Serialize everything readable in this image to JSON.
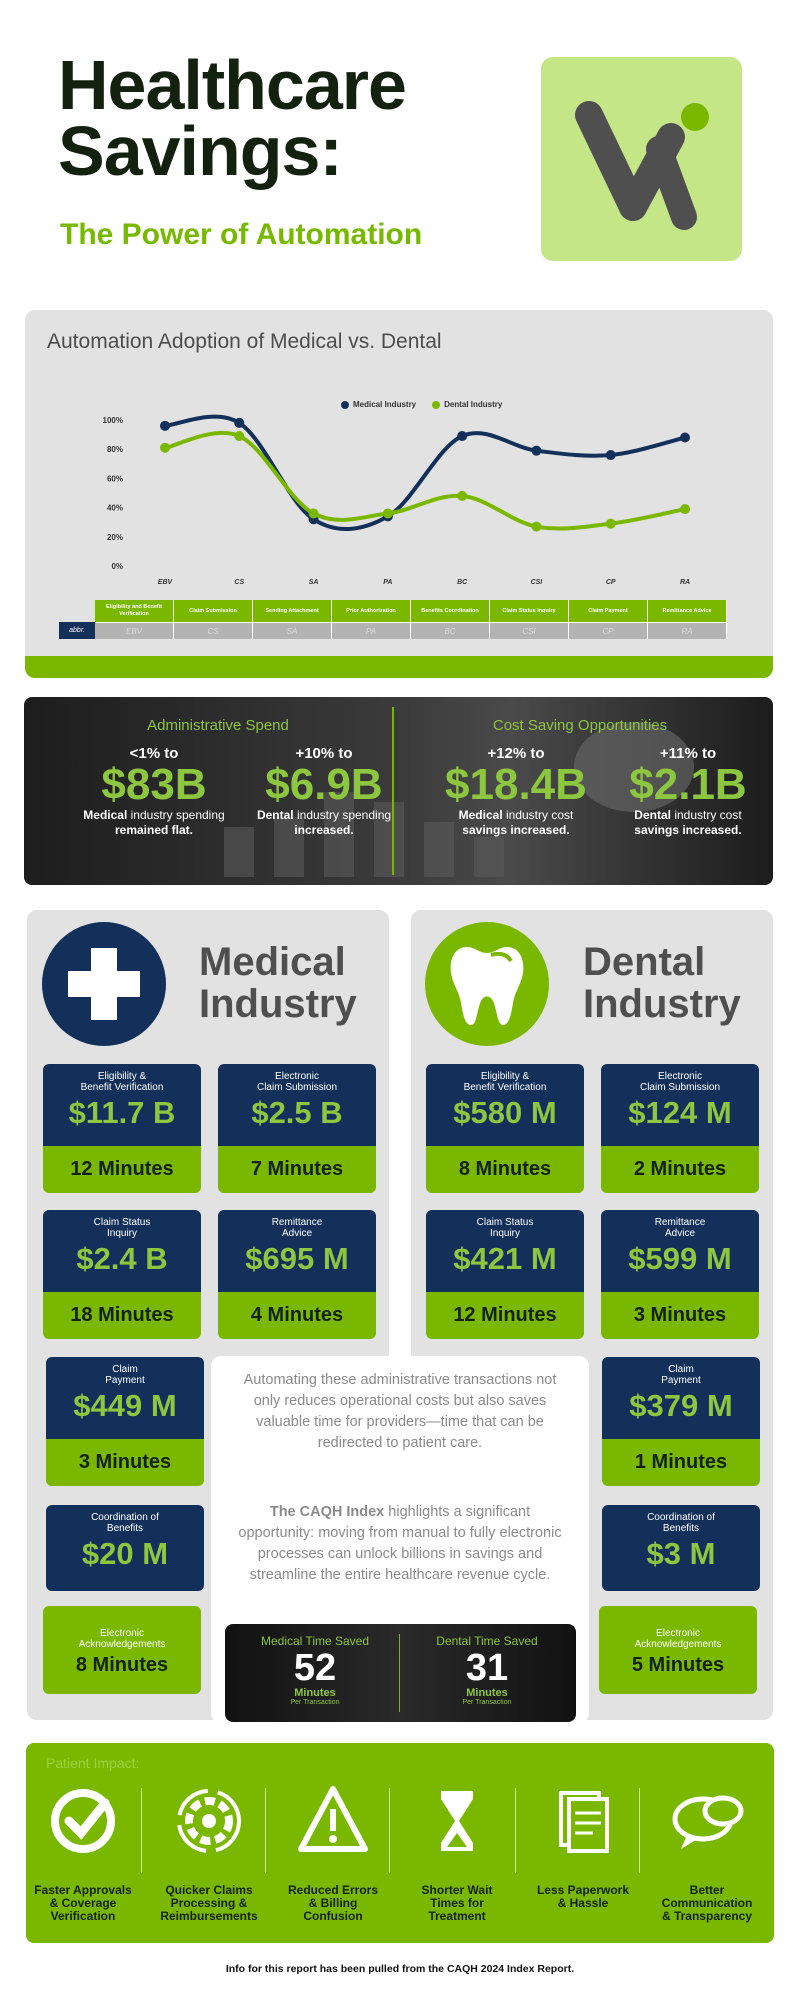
{
  "header": {
    "title_line1": "Healthcare",
    "title_line2": "Savings:",
    "subtitle": "The Power of Automation"
  },
  "chart_data": {
    "type": "line",
    "title": "Automation Adoption of Medical vs. Dental",
    "categories": [
      "EBV",
      "CS",
      "SA",
      "PA",
      "BC",
      "CSI",
      "CP",
      "RA"
    ],
    "series": [
      {
        "name": "Medical Industry",
        "color": "#13305a",
        "values": [
          96,
          98,
          32,
          34,
          89,
          79,
          76,
          88
        ]
      },
      {
        "name": "Dental Industry",
        "color": "#7ab800",
        "values": [
          81,
          89,
          36,
          36,
          48,
          27,
          29,
          39
        ]
      }
    ],
    "ylim": [
      0,
      100
    ],
    "y_ticks": [
      "100%",
      "80%",
      "60%",
      "40%",
      "20%",
      "0%"
    ],
    "legend": "top-center",
    "grid": false
  },
  "abbr_table": {
    "key": "abbr.",
    "names": [
      "Eligibility and Benefit Verification",
      "Claim Submission",
      "Sending Attachment",
      "Prior Authorization",
      "Benefits Coordination",
      "Claim Status Inquiry",
      "Claim Payment",
      "Remittance Advice"
    ],
    "codes": [
      "EBV",
      "CS",
      "SA",
      "PA",
      "BC",
      "CSI",
      "CP",
      "RA"
    ]
  },
  "spend": {
    "admin_head": "Administrative Spend",
    "cost_head": "Cost Saving Opportunities",
    "items": [
      {
        "pct": "<1% to",
        "value": "$83B",
        "desc_bold": "Medical",
        "desc": " industry spending",
        "desc2": "remained flat."
      },
      {
        "pct": "+10% to",
        "value": "$6.9B",
        "desc_bold": "Dental",
        "desc": " industry spending",
        "desc2": "increased."
      },
      {
        "pct": "+12% to",
        "value": "$18.4B",
        "desc_bold": "Medical",
        "desc": " industry cost",
        "desc2": "savings increased."
      },
      {
        "pct": "+11% to",
        "value": "$2.1B",
        "desc_bold": "Dental",
        "desc": " industry cost",
        "desc2": "savings increased."
      }
    ]
  },
  "medical": {
    "title1": "Medical",
    "title2": "Industry",
    "stats": [
      {
        "label1": "Eligibility &",
        "label2": "Benefit Verification",
        "value": "$11.7 B",
        "time": "12 Minutes"
      },
      {
        "label1": "Electronic",
        "label2": "Claim Submission",
        "value": "$2.5 B",
        "time": "7 Minutes"
      },
      {
        "label1": "Claim Status",
        "label2": "Inquiry",
        "value": "$2.4 B",
        "time": "18 Minutes"
      },
      {
        "label1": "Remittance",
        "label2": "Advice",
        "value": "$695 M",
        "time": "4 Minutes"
      },
      {
        "label1": "Claim",
        "label2": "Payment",
        "value": "$449 M",
        "time": "3 Minutes"
      },
      {
        "label1": "Coordination of",
        "label2": "Benefits",
        "value": "$20 M"
      }
    ],
    "ack_label1": "Electronic",
    "ack_label2": "Acknowledgements",
    "ack_value": "8 Minutes"
  },
  "dental": {
    "title1": "Dental",
    "title2": "Industry",
    "stats": [
      {
        "label1": "Eligibility &",
        "label2": "Benefit Verification",
        "value": "$580 M",
        "time": "8 Minutes"
      },
      {
        "label1": "Electronic",
        "label2": "Claim Submission",
        "value": "$124 M",
        "time": "2 Minutes"
      },
      {
        "label1": "Claim Status",
        "label2": "Inquiry",
        "value": "$421 M",
        "time": "12 Minutes"
      },
      {
        "label1": "Remittance",
        "label2": "Advice",
        "value": "$599 M",
        "time": "3 Minutes"
      },
      {
        "label1": "Claim",
        "label2": "Payment",
        "value": "$379 M",
        "time": "1 Minutes"
      },
      {
        "label1": "Coordination of",
        "label2": "Benefits",
        "value": "$3 M"
      }
    ],
    "ack_label1": "Electronic",
    "ack_label2": "Acknowledgements",
    "ack_value": "5 Minutes"
  },
  "center": {
    "p1": "Automating these administrative transactions not only reduces operational costs but also saves valuable time for providers—time that can be redirected to patient care.",
    "p2_bold": "The CAQH Index",
    "p2": " highlights a significant opportunity: moving from manual to fully electronic processes can unlock billions in savings and streamline the entire healthcare revenue cycle."
  },
  "time_saved": [
    {
      "label": "Medical Time Saved",
      "num": "52",
      "unit": "Minutes",
      "per": "Per Transaction"
    },
    {
      "label": "Dental Time Saved",
      "num": "31",
      "unit": "Minutes",
      "per": "Per Transaction"
    }
  ],
  "impact": {
    "title": "Patient Impact:",
    "items": [
      {
        "icon": "check-circle-icon",
        "l1": "Faster Approvals",
        "l2": "& Coverage",
        "l3": "Verification"
      },
      {
        "icon": "gear-cycle-icon",
        "l1": "Quicker Claims",
        "l2": "Processing &",
        "l3": "Reimbursements"
      },
      {
        "icon": "warning-icon",
        "l1": "Reduced Errors",
        "l2": "& Billing",
        "l3": "Confusion"
      },
      {
        "icon": "hourglass-icon",
        "l1": "Shorter Wait",
        "l2": "Times for",
        "l3": "Treatment"
      },
      {
        "icon": "paperwork-icon",
        "l1": "Less Paperwork",
        "l2": "& Hassle",
        "l3": ""
      },
      {
        "icon": "speech-bubbles-icon",
        "l1": "Better",
        "l2": "Communication",
        "l3": "& Transparency"
      }
    ]
  },
  "footer": "Info for this report has been pulled from the CAQH 2024 Index Report."
}
